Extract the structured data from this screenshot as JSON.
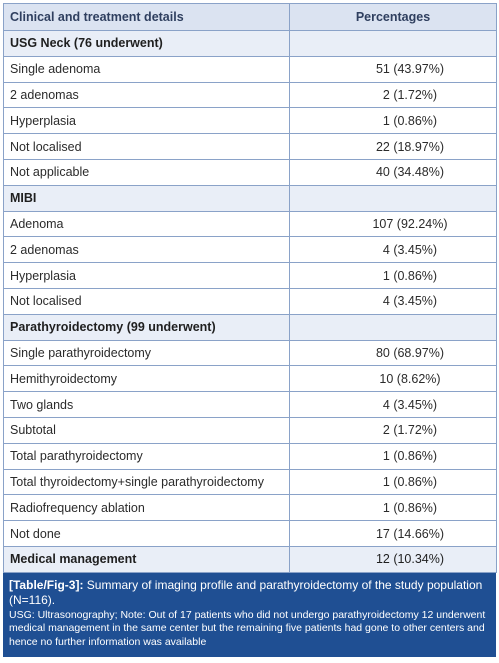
{
  "table": {
    "header": {
      "col1": "Clinical and treatment details",
      "col2": "Percentages"
    },
    "rows": [
      {
        "type": "section",
        "label": "USG Neck (76 underwent)",
        "value": ""
      },
      {
        "type": "row",
        "label": "Single adenoma",
        "value": "51 (43.97%)"
      },
      {
        "type": "row",
        "label": "2 adenomas",
        "value": "2 (1.72%)"
      },
      {
        "type": "row",
        "label": "Hyperplasia",
        "value": "1 (0.86%)"
      },
      {
        "type": "row",
        "label": "Not localised",
        "value": "22 (18.97%)"
      },
      {
        "type": "row",
        "label": "Not applicable",
        "value": "40 (34.48%)"
      },
      {
        "type": "section",
        "label": "MIBI",
        "value": ""
      },
      {
        "type": "row",
        "label": "Adenoma",
        "value": "107 (92.24%)"
      },
      {
        "type": "row",
        "label": "2 adenomas",
        "value": "4 (3.45%)"
      },
      {
        "type": "row",
        "label": "Hyperplasia",
        "value": "1 (0.86%)"
      },
      {
        "type": "row",
        "label": "Not localised",
        "value": "4 (3.45%)"
      },
      {
        "type": "section",
        "label": "Parathyroidectomy (99 underwent)",
        "value": ""
      },
      {
        "type": "row",
        "label": "Single parathyroidectomy",
        "value": "80 (68.97%)"
      },
      {
        "type": "row",
        "label": "Hemithyroidectomy",
        "value": "10 (8.62%)"
      },
      {
        "type": "row",
        "label": "Two glands",
        "value": "4 (3.45%)"
      },
      {
        "type": "row",
        "label": "Subtotal",
        "value": "2 (1.72%)"
      },
      {
        "type": "row",
        "label": "Total parathyroidectomy",
        "value": "1 (0.86%)"
      },
      {
        "type": "row",
        "label": "Total thyroidectomy+single parathyroidectomy",
        "value": "1 (0.86%)"
      },
      {
        "type": "row",
        "label": "Radiofrequency ablation",
        "value": "1 (0.86%)"
      },
      {
        "type": "row",
        "label": "Not done",
        "value": "17 (14.66%)"
      },
      {
        "type": "section-value",
        "label": "Medical management",
        "value": "12 (10.34%)"
      }
    ]
  },
  "caption": {
    "tag": "[Table/Fig-3]:",
    "title": " Summary of imaging profile and parathyroidectomy of the study population (N=116).",
    "note": "USG: Ultrasonography; Note: Out of 17 patients who did not undergo parathyroidectomy 12 underwent medical management in the same center but the remaining five patients had gone to other centers and hence no further information was available"
  },
  "colors": {
    "header_bg": "#dbe3f1",
    "section_bg": "#e9eef7",
    "border": "#8aa2c8",
    "caption_bg": "#1f4f93"
  }
}
